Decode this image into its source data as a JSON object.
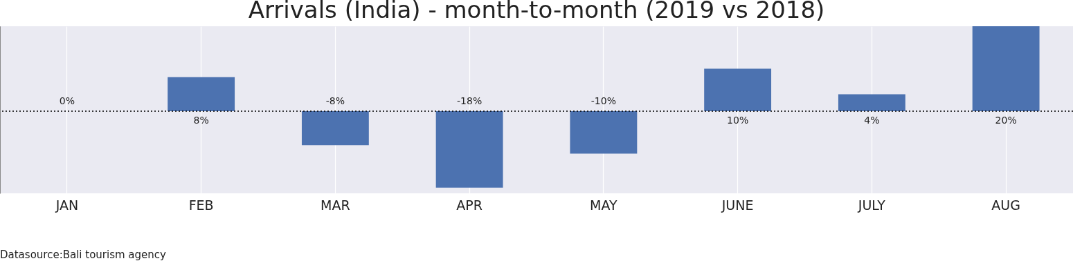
{
  "chart_data": {
    "type": "bar",
    "title": "Arrivals (India) - month-to-month (2019 vs 2018)",
    "categories": [
      "JAN",
      "FEB",
      "MAR",
      "APR",
      "MAY",
      "JUNE",
      "JULY",
      "AUG"
    ],
    "values": [
      0,
      8,
      -8,
      -18,
      -10,
      10,
      4,
      20
    ],
    "value_labels": [
      "0%",
      "8%",
      "-8%",
      "-18%",
      "-10%",
      "10%",
      "4%",
      "20%"
    ],
    "color": "#4c72b0",
    "grid": "x",
    "ref_lines": [
      {
        "axis": "y",
        "value": 0,
        "line_style": "dotted",
        "color": "#000000"
      }
    ],
    "annotations": [
      "Datasource:Bali tourism agency"
    ]
  }
}
